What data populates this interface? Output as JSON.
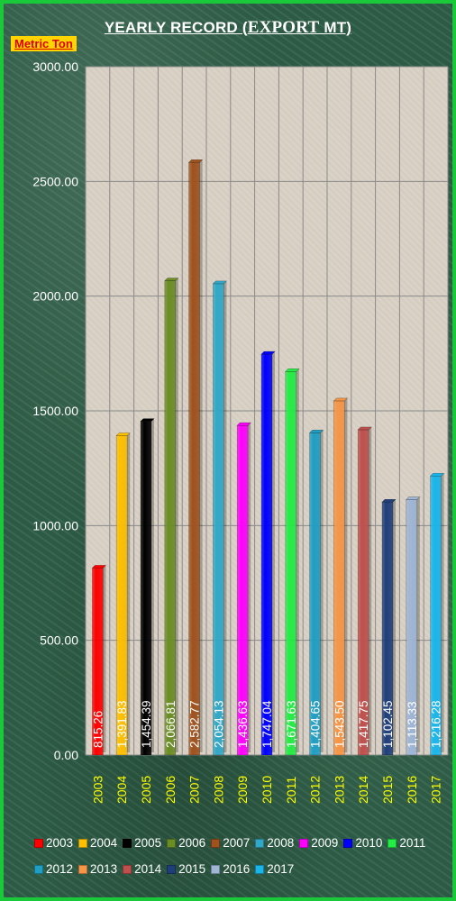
{
  "header": {
    "title_prefix": "YEARLY RECORD (",
    "title_emph": "EXPORT",
    "title_suffix": "  MT)",
    "unit_label": "Metric Ton"
  },
  "chart_data": {
    "type": "bar",
    "title": "YEARLY RECORD (EXPORT  MT)",
    "ylabel": "Metric Ton",
    "xlabel": "",
    "ylim": [
      0,
      3000
    ],
    "yticks": [
      "0.00",
      "500.00",
      "1000.00",
      "1500.00",
      "2000.00",
      "2500.00",
      "3000.00"
    ],
    "grid": true,
    "legend_position": "bottom",
    "categories": [
      "2003",
      "2004",
      "2005",
      "2006",
      "2007",
      "2008",
      "2009",
      "2010",
      "2011",
      "2012",
      "2013",
      "2014",
      "2015",
      "2016",
      "2017"
    ],
    "values": [
      815.26,
      1391.83,
      1454.39,
      2066.81,
      2582.77,
      2054.13,
      1436.63,
      1747.04,
      1671.63,
      1404.65,
      1543.5,
      1417.75,
      1102.45,
      1113.33,
      1216.28
    ],
    "data_labels": [
      "815.26",
      "1,391.83",
      "1,454.39",
      "2,066.81",
      "2,582.77",
      "2,054.13",
      "1,436.63",
      "1,747.04",
      "1,671.63",
      "1,404.65",
      "1,543.50",
      "1,417.75",
      "1,102.45",
      "1,113.33",
      "1,216.28"
    ],
    "colors": [
      "#ff0000",
      "#ffc000",
      "#000000",
      "#6b8e23",
      "#a0521e",
      "#31a8c8",
      "#ff00ff",
      "#0000ff",
      "#22ee44",
      "#1f9fc4",
      "#f79646",
      "#c0504d",
      "#1f3f7a",
      "#9fb6d6",
      "#19b6ec"
    ],
    "label_colors": [
      "#ffffff",
      "#ffffff",
      "#ffffff",
      "#ffffff",
      "#ffffff",
      "#ffffff",
      "#ffffff",
      "#ffffff",
      "#000000",
      "#ffffff",
      "#ffffff",
      "#ffffff",
      "#ffffff",
      "#ffffff",
      "#ffffff"
    ]
  }
}
